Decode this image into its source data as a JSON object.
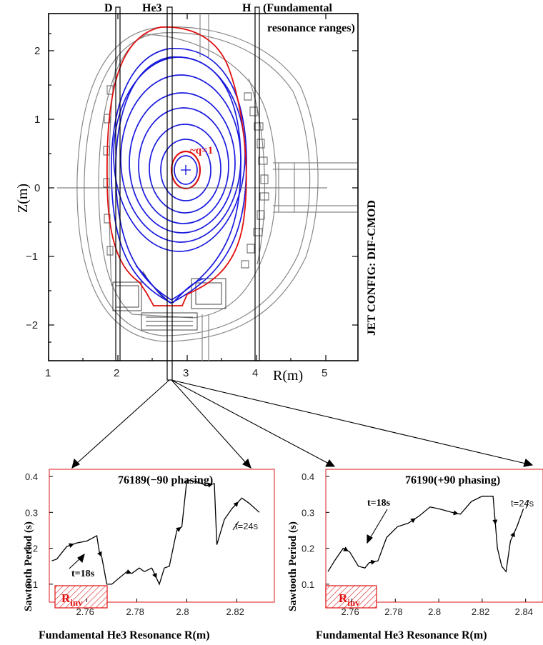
{
  "top_plot": {
    "xticks": [
      "1",
      "2",
      "3",
      "4",
      "5"
    ],
    "yticks": [
      "2",
      "1",
      "0",
      "−1",
      "−2"
    ],
    "xlabel": "R(m)",
    "ylabel": "Z(m)",
    "side_label": "JET CONFIG: DIF-CMOD",
    "q_label": "~q=1",
    "band_labels": [
      "D",
      "He3",
      "H"
    ],
    "range_note_1": "(Fundamental",
    "range_note_2": "resonance ranges)"
  },
  "left_plot": {
    "title": "76189(−90 phasing)",
    "ylabel": "Sawtooth Period (s)",
    "xlabel": "Fundamental He3 Resonance R(m)",
    "xticks": [
      "2.76",
      "2.78",
      "2.8",
      "2.82"
    ],
    "yticks": [
      "0.4",
      "0.3",
      "0.2",
      "0.1"
    ],
    "t_start": "t=18s",
    "t_end": "t=24s",
    "rinv": "R",
    "rinv_sub": "inv"
  },
  "right_plot": {
    "title": "76190(+90 phasing)",
    "ylabel": "Sawtooth Period (s)",
    "xlabel": "Fundamental He3 Resonance R(m)",
    "xticks": [
      "2.76",
      "2.78",
      "2.8",
      "2.82",
      "2.84"
    ],
    "yticks": [
      "0.4",
      "0.3",
      "0.2",
      "0.1"
    ],
    "t_start": "t=18s",
    "t_end": "t=24s",
    "rinv": "R",
    "rinv_sub": "inv"
  },
  "chart_data": [
    {
      "type": "line",
      "title": "76189(−90 phasing)",
      "xlabel": "Fundamental He3 Resonance R(m)",
      "ylabel": "Sawtooth Period (s)",
      "xlim": [
        2.745,
        2.835
      ],
      "ylim": [
        0.05,
        0.42
      ],
      "x": [
        2.746,
        2.748,
        2.752,
        2.756,
        2.76,
        2.764,
        2.765,
        2.766,
        2.768,
        2.77,
        2.776,
        2.778,
        2.781,
        2.783,
        2.786,
        2.789,
        2.791,
        2.793,
        2.796,
        2.798,
        2.8,
        2.804,
        2.808,
        2.811,
        2.812,
        2.815,
        2.818,
        2.822,
        2.825,
        2.829
      ],
      "y": [
        0.165,
        0.17,
        0.205,
        0.215,
        0.22,
        0.235,
        0.19,
        0.175,
        0.1,
        0.1,
        0.135,
        0.13,
        0.145,
        0.135,
        0.145,
        0.1,
        0.145,
        0.15,
        0.25,
        0.26,
        0.39,
        0.385,
        0.375,
        0.38,
        0.21,
        0.28,
        0.31,
        0.34,
        0.325,
        0.3
      ]
    },
    {
      "type": "line",
      "title": "76190(+90 phasing)",
      "xlabel": "Fundamental He3 Resonance R(m)",
      "ylabel": "Sawtooth Period (s)",
      "xlim": [
        2.748,
        2.848
      ],
      "ylim": [
        0.05,
        0.42
      ],
      "x": [
        2.749,
        2.752,
        2.756,
        2.759,
        2.763,
        2.766,
        2.768,
        2.772,
        2.776,
        2.781,
        2.786,
        2.791,
        2.796,
        2.8,
        2.806,
        2.81,
        2.815,
        2.82,
        2.825,
        2.827,
        2.829,
        2.831,
        2.833,
        2.836,
        2.839
      ],
      "y": [
        0.135,
        0.165,
        0.2,
        0.19,
        0.15,
        0.145,
        0.16,
        0.165,
        0.23,
        0.26,
        0.27,
        0.29,
        0.315,
        0.31,
        0.3,
        0.295,
        0.33,
        0.345,
        0.345,
        0.2,
        0.15,
        0.135,
        0.22,
        0.26,
        0.31
      ]
    }
  ]
}
